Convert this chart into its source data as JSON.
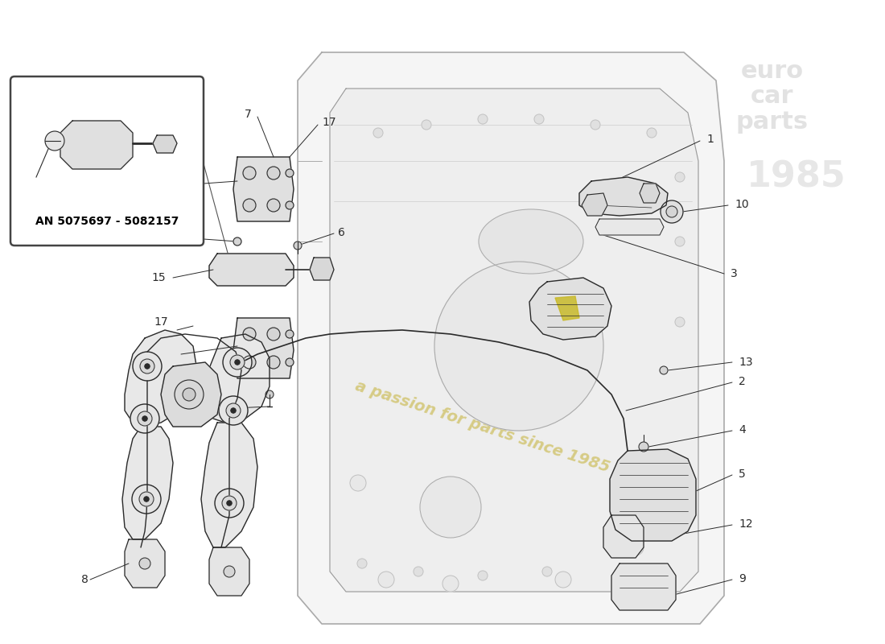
{
  "background_color": "#ffffff",
  "watermark_text": "a passion for parts since 1985",
  "watermark_color": "#d4c87a",
  "inset_text": "AN 5075697 - 5082157",
  "line_color": "#2a2a2a",
  "part_color": "#e8e8e8",
  "door_fill": "#f2f2f2",
  "door_stroke": "#888888"
}
